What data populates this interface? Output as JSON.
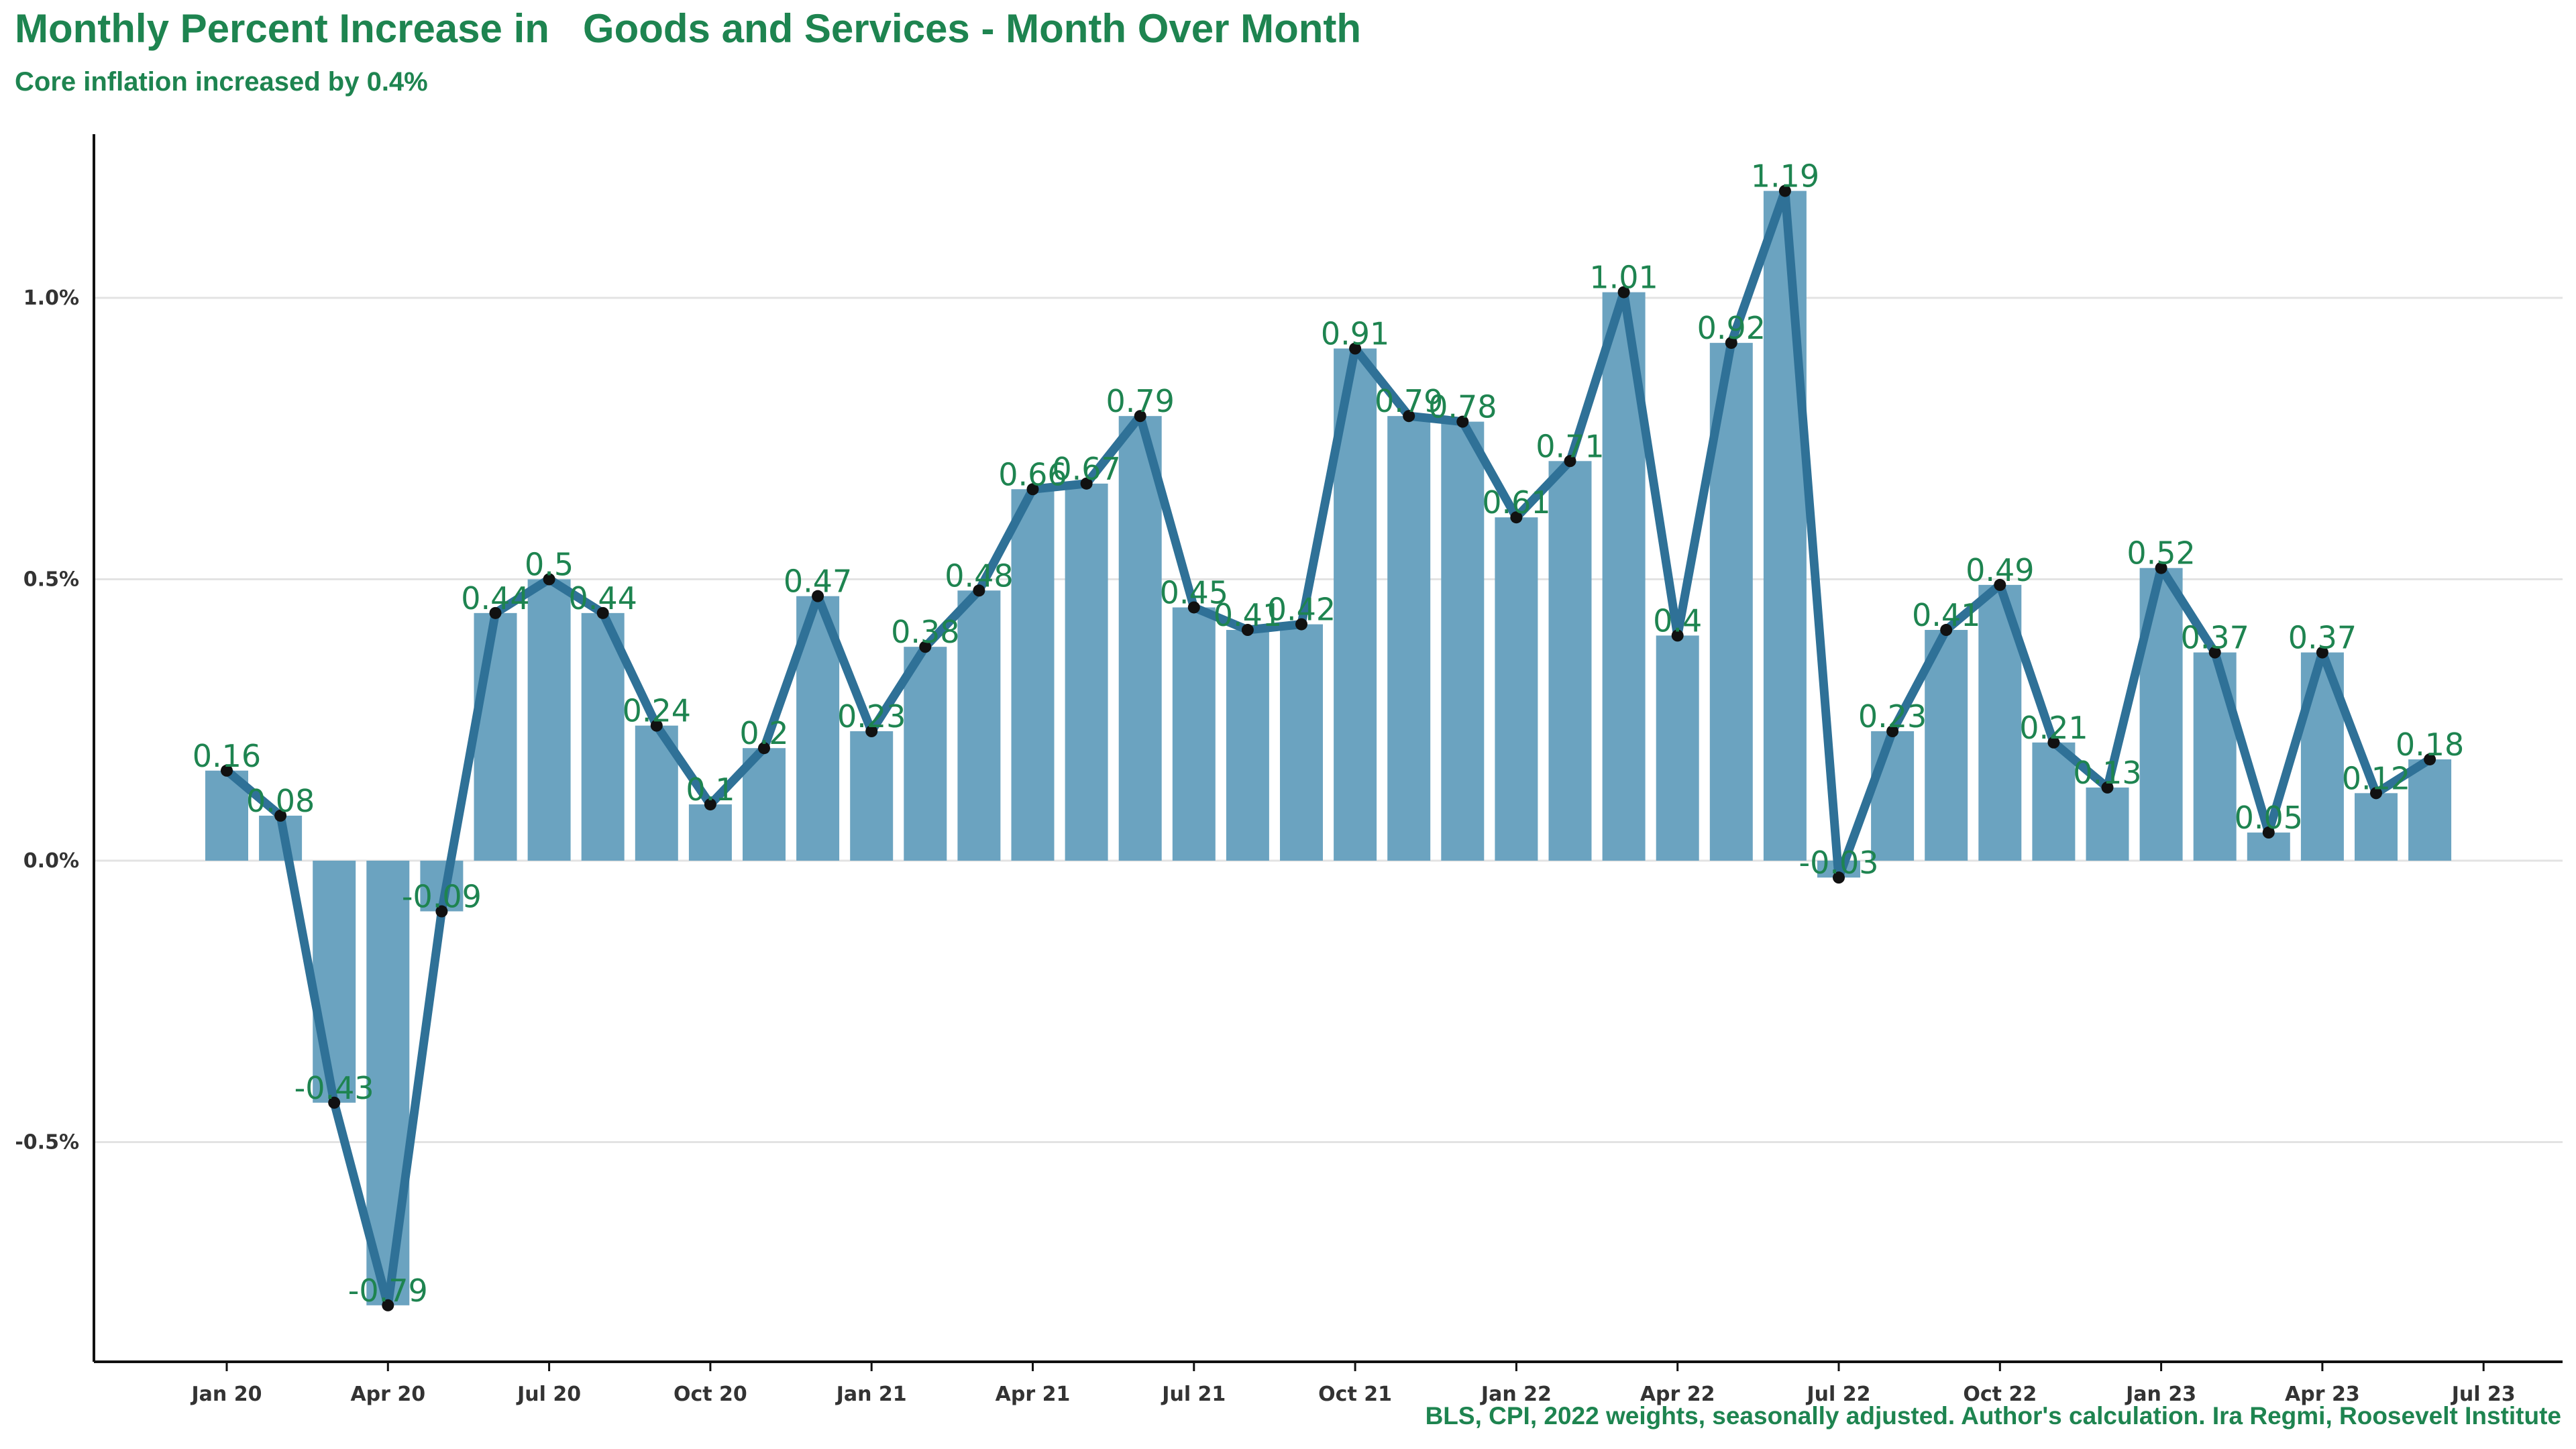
{
  "title": "Monthly Percent Increase in   Goods and Services - Month Over Month",
  "subtitle": "Core inflation increased by 0.4%",
  "caption": "BLS, CPI, 2022 weights, seasonally adjusted. Author's calculation. Ira Regmi, Roosevelt Institute",
  "colors": {
    "title": "#1e8450",
    "bar": "#6ba3c0",
    "line": "#2f7197",
    "point": "#111111",
    "grid": "#e3e3e3",
    "label": "#1e8450"
  },
  "chart_data": {
    "type": "bar",
    "combined_with": "line",
    "x_axis": {
      "type": "date",
      "ticks": [
        "Jan 20",
        "Apr 20",
        "Jul 20",
        "Oct 20",
        "Jan 21",
        "Apr 21",
        "Jul 21",
        "Oct 21",
        "Jan 22",
        "Apr 22",
        "Jul 22",
        "Oct 22",
        "Jan 23",
        "Apr 23",
        "Jul 23"
      ]
    },
    "y_axis": {
      "ticks": [
        "-0.5%",
        "0.0%",
        "0.5%",
        "1.0%"
      ],
      "tick_values": [
        -0.5,
        0,
        0.5,
        1.0
      ],
      "range": [
        -0.9,
        1.28
      ],
      "grid": true
    },
    "months": [
      "2020-01",
      "2020-02",
      "2020-03",
      "2020-04",
      "2020-05",
      "2020-06",
      "2020-07",
      "2020-08",
      "2020-09",
      "2020-10",
      "2020-11",
      "2020-12",
      "2021-01",
      "2021-02",
      "2021-03",
      "2021-04",
      "2021-05",
      "2021-06",
      "2021-07",
      "2021-08",
      "2021-09",
      "2021-10",
      "2021-11",
      "2021-12",
      "2022-01",
      "2022-02",
      "2022-03",
      "2022-04",
      "2022-05",
      "2022-06",
      "2022-07",
      "2022-08",
      "2022-09",
      "2022-10",
      "2022-11",
      "2022-12",
      "2023-01",
      "2023-02",
      "2023-03",
      "2023-04",
      "2023-05",
      "2023-06"
    ],
    "values": [
      0.16,
      0.08,
      -0.43,
      -0.79,
      -0.09,
      0.44,
      0.5,
      0.44,
      0.24,
      0.1,
      0.2,
      0.47,
      0.23,
      0.38,
      0.48,
      0.66,
      0.67,
      0.79,
      0.45,
      0.41,
      0.42,
      0.91,
      0.79,
      0.78,
      0.61,
      0.71,
      1.01,
      0.4,
      0.92,
      1.19,
      -0.03,
      0.23,
      0.41,
      0.49,
      0.21,
      0.13,
      0.52,
      0.37,
      0.05,
      0.37,
      0.12,
      0.18
    ],
    "labels": [
      "0.16",
      "0.08",
      "-0.43",
      "-0.79",
      "-0.09",
      "0.44",
      "0.5",
      "0.44",
      "0.24",
      "0.1",
      "0.2",
      "0.47",
      "0.23",
      "0.38",
      "0.48",
      "0.66",
      "0.67",
      "0.79",
      "0.45",
      "0.41",
      "0.42",
      "0.91",
      "0.79",
      "0.78",
      "0.61",
      "0.71",
      "1.01",
      "0.4",
      "0.92",
      "1.19",
      "-0.03",
      "0.23",
      "0.41",
      "0.49",
      "0.21",
      "0.13",
      "0.52",
      "0.37",
      "0.05",
      "0.37",
      "0.12",
      "0.18"
    ],
    "legend": false
  }
}
